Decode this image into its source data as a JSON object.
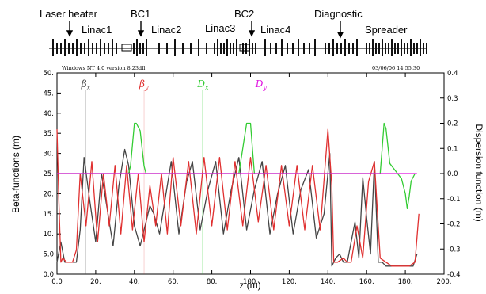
{
  "header": {
    "components": [
      "Laser heater",
      "BC1",
      "Linac1",
      "Linac2",
      "BC2",
      "Linac3",
      "Linac4",
      "Diagnostic",
      "Spreader"
    ],
    "left_note": "Windows NT 4.0 version 8.23dll",
    "right_note": "03/06/06  14.55.30"
  },
  "chart_data": {
    "type": "line",
    "xlabel": "z (m)",
    "ylabel": "Beta-functions (m)",
    "y2label": "Dispersion function (m)",
    "xlim": [
      0,
      200
    ],
    "ylim": [
      0,
      50
    ],
    "y2lim": [
      -0.4,
      0.4
    ],
    "x_ticks": [
      "0.0",
      "20.",
      "40.",
      "60.",
      "80.",
      "100.",
      "120.",
      "140.",
      "160.",
      "180.",
      "200."
    ],
    "y_ticks": [
      "0.0",
      "5.0",
      "10.",
      "15.",
      "20.",
      "25.",
      "30.",
      "35.",
      "40.",
      "45.",
      "50."
    ],
    "y2_ticks": [
      "-0.4",
      "-0.3",
      "-0.2",
      "-0.1",
      "0.0",
      "0.1",
      "0.2",
      "0.3",
      "0.4"
    ],
    "legend": [
      {
        "text": "β",
        "sub": "x",
        "color": "#444444",
        "x": 15
      },
      {
        "text": "β",
        "sub": "y",
        "color": "#e03030",
        "x": 45
      },
      {
        "text": "D",
        "sub": "x",
        "color": "#33cc33",
        "x": 75
      },
      {
        "text": "D",
        "sub": "y",
        "color": "#e010e0",
        "x": 105
      }
    ],
    "series": [
      {
        "axis": "left",
        "color": "#444444",
        "x": [
          0,
          2,
          4,
          6,
          8,
          10,
          12,
          14,
          17,
          20,
          23,
          26,
          29,
          32,
          35,
          37,
          40,
          43,
          46,
          48,
          50,
          53,
          56,
          59,
          63,
          67,
          70,
          74,
          78,
          82,
          86,
          90,
          94,
          98,
          102,
          106,
          110,
          114,
          118,
          122,
          126,
          130,
          134,
          138,
          141,
          142,
          144,
          146,
          148,
          150,
          152,
          154,
          156,
          158,
          160,
          162,
          164,
          166,
          168,
          170,
          172,
          174,
          176,
          178,
          180,
          182,
          184,
          186
        ],
        "y": [
          3,
          8,
          3,
          3,
          3,
          3,
          11,
          29,
          18,
          8,
          25,
          16,
          7,
          22,
          31,
          27,
          12,
          7,
          13,
          17,
          15,
          10,
          19,
          28,
          10,
          23,
          28,
          11,
          21,
          28,
          10,
          21,
          29,
          11,
          21,
          28,
          10,
          20,
          27,
          10,
          21,
          26,
          9,
          15,
          30,
          2,
          4,
          5,
          3,
          3,
          8,
          13,
          4,
          24,
          14,
          5,
          28,
          3,
          3,
          2,
          2,
          2,
          2,
          2,
          2,
          2,
          2,
          5
        ]
      },
      {
        "axis": "left",
        "color": "#e03030",
        "x": [
          0,
          1,
          2,
          3,
          5,
          8,
          10,
          12,
          15,
          18,
          21,
          24,
          27,
          30,
          33,
          36,
          39,
          42,
          45,
          48,
          51,
          54,
          57,
          60,
          64,
          68,
          72,
          76,
          80,
          84,
          88,
          92,
          96,
          100,
          104,
          108,
          112,
          116,
          120,
          124,
          128,
          132,
          136,
          140,
          142,
          143,
          145,
          148,
          150,
          152,
          155,
          158,
          161,
          164,
          167,
          170,
          173,
          176,
          179,
          182,
          185,
          187
        ],
        "y": [
          36,
          18,
          3,
          4,
          3,
          3,
          6,
          25,
          12,
          28,
          8,
          25,
          12,
          27,
          10,
          27,
          11,
          25,
          8,
          22,
          12,
          25,
          10,
          29,
          12,
          28,
          10,
          29,
          12,
          29,
          11,
          28,
          12,
          29,
          13,
          27,
          11,
          27,
          12,
          27,
          11,
          27,
          11,
          36,
          22,
          3,
          3,
          4,
          3,
          3,
          12,
          4,
          23,
          28,
          4,
          3,
          2,
          2,
          2,
          2,
          3,
          15
        ]
      },
      {
        "axis": "right",
        "color": "#33cc33",
        "x": [
          0,
          37,
          38,
          40,
          41,
          43,
          45,
          46,
          94,
          96,
          98,
          100,
          101,
          102,
          167,
          168,
          169,
          170,
          172,
          174,
          176,
          178,
          180,
          181,
          182,
          183,
          185
        ],
        "y": [
          0,
          0,
          0.03,
          0.2,
          0.2,
          0.17,
          0.03,
          0,
          0,
          0.1,
          0.2,
          0.2,
          0.1,
          0,
          0,
          0.1,
          0.2,
          0.18,
          0.04,
          0.02,
          0,
          -0.02,
          -0.08,
          -0.14,
          -0.09,
          -0.03,
          0
        ]
      },
      {
        "axis": "right",
        "color": "#e010e0",
        "x": [
          0,
          186
        ],
        "y": [
          0,
          0
        ]
      }
    ]
  }
}
